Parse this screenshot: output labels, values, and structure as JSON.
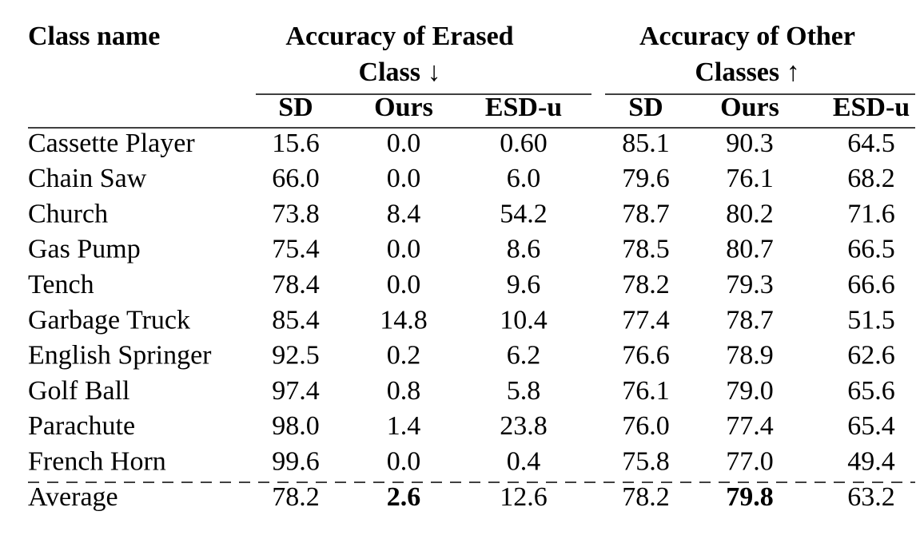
{
  "header": {
    "class_name": "Class name",
    "groups": [
      {
        "lines": [
          "Accuracy of Erased",
          "Class ↓"
        ],
        "columns": [
          "SD",
          "Ours",
          "ESD-u"
        ]
      },
      {
        "lines": [
          "Accuracy of Other",
          "Classes ↑"
        ],
        "columns": [
          "SD",
          "Ours",
          "ESD-u"
        ]
      }
    ]
  },
  "rows": [
    [
      "Cassette Player",
      "15.6",
      "0.0",
      "0.60",
      "85.1",
      "90.3",
      "64.5"
    ],
    [
      "Chain Saw",
      "66.0",
      "0.0",
      "6.0",
      "79.6",
      "76.1",
      "68.2"
    ],
    [
      "Church",
      "73.8",
      "8.4",
      "54.2",
      "78.7",
      "80.2",
      "71.6"
    ],
    [
      "Gas Pump",
      "75.4",
      "0.0",
      "8.6",
      "78.5",
      "80.7",
      "66.5"
    ],
    [
      "Tench",
      "78.4",
      "0.0",
      "9.6",
      "78.2",
      "79.3",
      "66.6"
    ],
    [
      "Garbage Truck",
      "85.4",
      "14.8",
      "10.4",
      "77.4",
      "78.7",
      "51.5"
    ],
    [
      "English Springer",
      "92.5",
      "0.2",
      "6.2",
      "76.6",
      "78.9",
      "62.6"
    ],
    [
      "Golf Ball",
      "97.4",
      "0.8",
      "5.8",
      "76.1",
      "79.0",
      "65.6"
    ],
    [
      "Parachute",
      "98.0",
      "1.4",
      "23.8",
      "76.0",
      "77.4",
      "65.4"
    ],
    [
      "French Horn",
      "99.6",
      "0.0",
      "0.4",
      "75.8",
      "77.0",
      "49.4"
    ]
  ],
  "average": [
    "Average",
    "78.2",
    "2.6",
    "12.6",
    "78.2",
    "79.8",
    "63.2"
  ]
}
